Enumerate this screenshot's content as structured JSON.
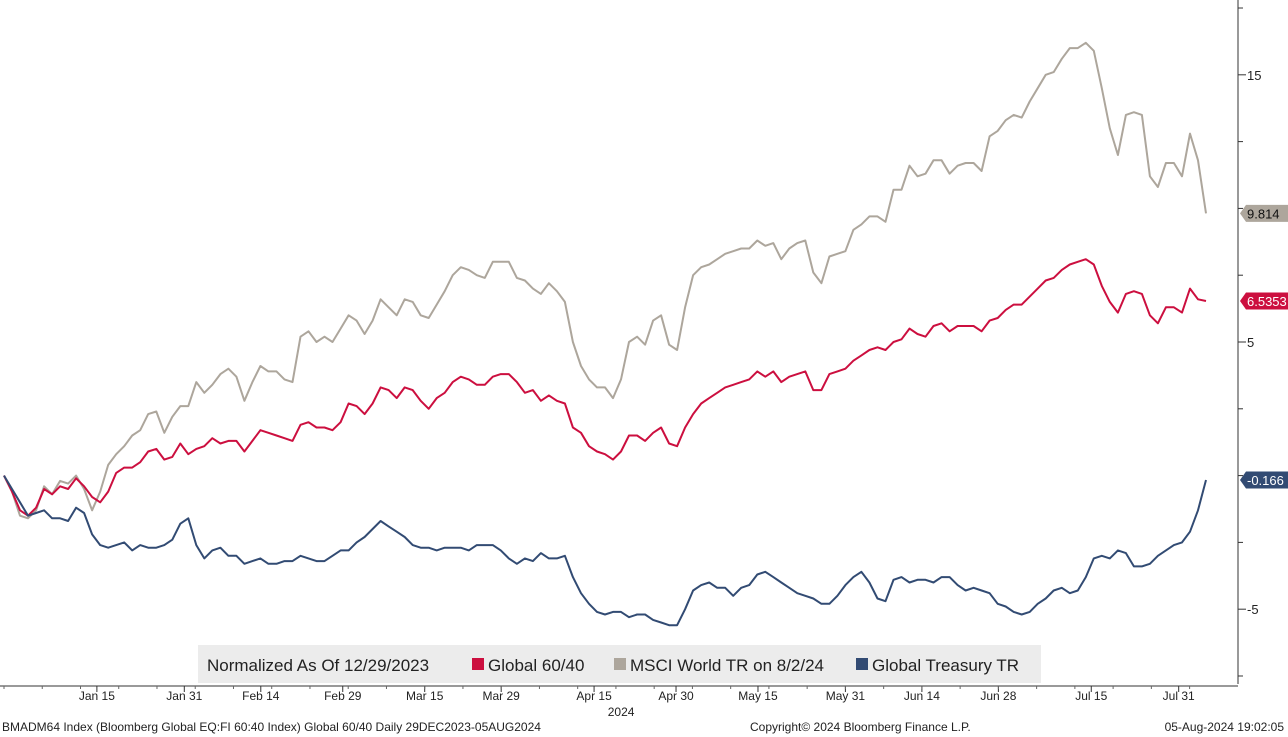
{
  "chart_data": {
    "type": "line",
    "legend": {
      "placement": "bottom",
      "label": "Normalized As Of 12/29/2023",
      "entries": [
        "Global 60/40",
        "MSCI World TR on 8/2/24",
        "Global Treasury TR"
      ]
    },
    "y_axis": {
      "position": "right",
      "ticks": [
        15,
        5,
        -5
      ],
      "range": [
        -7.8,
        17.8
      ]
    },
    "x_axis": {
      "ticks": [
        "Jan 15",
        "Jan 31",
        "Feb 14",
        "Feb 29",
        "Mar 15",
        "Mar 29",
        "Apr 15",
        "Apr 30",
        "May 15",
        "May 31",
        "Jun 14",
        "Jun 28",
        "Jul 15",
        "Jul 31"
      ],
      "year_label": "2024",
      "start": "2023-12-29",
      "end": "2024-08-05"
    },
    "grid": false,
    "series": [
      {
        "name": "MSCI World TR on 8/2/24",
        "color": "#ada69c",
        "last_value_label": "9.814",
        "values": [
          0.0,
          -0.6,
          -1.5,
          -1.6,
          -1.3,
          -0.4,
          -0.7,
          -0.2,
          -0.3,
          0.0,
          -0.5,
          -1.3,
          -0.6,
          0.4,
          0.8,
          1.1,
          1.5,
          1.7,
          2.3,
          2.4,
          1.6,
          2.2,
          2.6,
          2.6,
          3.5,
          3.1,
          3.4,
          3.8,
          4.0,
          3.7,
          2.8,
          3.5,
          4.1,
          3.9,
          3.9,
          3.6,
          3.5,
          5.2,
          5.4,
          5.0,
          5.2,
          5.0,
          5.5,
          6.0,
          5.8,
          5.3,
          5.8,
          6.6,
          6.3,
          6.0,
          6.6,
          6.5,
          6.0,
          5.9,
          6.4,
          6.9,
          7.5,
          7.8,
          7.7,
          7.5,
          7.4,
          8.0,
          8.0,
          8.0,
          7.4,
          7.3,
          7.0,
          6.8,
          7.2,
          6.9,
          6.5,
          5.0,
          4.1,
          3.6,
          3.3,
          3.3,
          2.9,
          3.6,
          5.0,
          5.2,
          4.9,
          5.8,
          6.0,
          4.9,
          4.7,
          6.3,
          7.5,
          7.8,
          7.9,
          8.1,
          8.3,
          8.4,
          8.5,
          8.5,
          8.8,
          8.6,
          8.7,
          8.1,
          8.5,
          8.7,
          8.8,
          7.6,
          7.2,
          8.2,
          8.3,
          8.4,
          9.2,
          9.4,
          9.7,
          9.7,
          9.5,
          10.7,
          10.7,
          11.6,
          11.2,
          11.3,
          11.8,
          11.8,
          11.3,
          11.6,
          11.7,
          11.7,
          11.4,
          12.7,
          12.9,
          13.3,
          13.5,
          13.4,
          14.0,
          14.5,
          15.0,
          15.1,
          15.6,
          16.0,
          16.0,
          16.2,
          15.9,
          14.5,
          13.0,
          12.0,
          13.5,
          13.6,
          13.5,
          11.2,
          10.8,
          11.7,
          11.7,
          11.2,
          12.8,
          11.8,
          9.814
        ]
      },
      {
        "name": "Global 60/40",
        "color": "#cc0f3f",
        "last_value_label": "6.5353",
        "values": [
          0.0,
          -0.6,
          -1.3,
          -1.5,
          -1.2,
          -0.5,
          -0.7,
          -0.4,
          -0.5,
          -0.1,
          -0.4,
          -0.8,
          -1.0,
          -0.6,
          0.1,
          0.3,
          0.3,
          0.5,
          0.9,
          1.0,
          0.6,
          0.7,
          1.2,
          0.8,
          1.0,
          1.1,
          1.4,
          1.2,
          1.3,
          1.3,
          0.9,
          1.3,
          1.7,
          1.6,
          1.5,
          1.4,
          1.3,
          1.9,
          2.0,
          1.8,
          1.8,
          1.7,
          2.0,
          2.7,
          2.6,
          2.3,
          2.7,
          3.3,
          3.2,
          2.9,
          3.3,
          3.2,
          2.8,
          2.5,
          2.9,
          3.1,
          3.5,
          3.7,
          3.6,
          3.4,
          3.4,
          3.7,
          3.8,
          3.8,
          3.5,
          3.1,
          3.2,
          2.8,
          3.0,
          2.8,
          2.7,
          1.8,
          1.6,
          1.1,
          0.9,
          0.8,
          0.6,
          0.9,
          1.5,
          1.5,
          1.3,
          1.6,
          1.8,
          1.2,
          1.1,
          1.8,
          2.3,
          2.7,
          2.9,
          3.1,
          3.3,
          3.4,
          3.5,
          3.6,
          3.9,
          3.7,
          3.9,
          3.5,
          3.7,
          3.8,
          3.9,
          3.2,
          3.2,
          3.8,
          3.9,
          4.0,
          4.3,
          4.5,
          4.7,
          4.8,
          4.7,
          5.0,
          5.1,
          5.5,
          5.3,
          5.2,
          5.6,
          5.7,
          5.4,
          5.6,
          5.6,
          5.6,
          5.4,
          5.8,
          5.9,
          6.2,
          6.4,
          6.4,
          6.7,
          7.0,
          7.3,
          7.4,
          7.7,
          7.9,
          8.0,
          8.1,
          7.9,
          7.1,
          6.5,
          6.1,
          6.8,
          6.9,
          6.8,
          6.0,
          5.7,
          6.3,
          6.3,
          6.1,
          7.0,
          6.6,
          6.5353
        ]
      },
      {
        "name": "Global Treasury TR",
        "color": "#324b73",
        "last_value_label": "-0.166",
        "values": [
          0.0,
          -0.5,
          -1.0,
          -1.5,
          -1.4,
          -1.3,
          -1.6,
          -1.6,
          -1.7,
          -1.2,
          -1.4,
          -2.2,
          -2.6,
          -2.7,
          -2.6,
          -2.5,
          -2.8,
          -2.6,
          -2.7,
          -2.7,
          -2.6,
          -2.4,
          -1.8,
          -1.6,
          -2.6,
          -3.1,
          -2.8,
          -2.7,
          -3.0,
          -3.0,
          -3.3,
          -3.2,
          -3.1,
          -3.3,
          -3.3,
          -3.2,
          -3.2,
          -3.0,
          -3.1,
          -3.2,
          -3.2,
          -3.0,
          -2.8,
          -2.8,
          -2.5,
          -2.3,
          -2.0,
          -1.7,
          -1.9,
          -2.1,
          -2.3,
          -2.6,
          -2.7,
          -2.7,
          -2.8,
          -2.7,
          -2.7,
          -2.7,
          -2.8,
          -2.6,
          -2.6,
          -2.6,
          -2.8,
          -3.1,
          -3.3,
          -3.1,
          -3.2,
          -2.9,
          -3.1,
          -3.1,
          -3.0,
          -3.8,
          -4.4,
          -4.8,
          -5.1,
          -5.2,
          -5.1,
          -5.1,
          -5.3,
          -5.2,
          -5.2,
          -5.4,
          -5.5,
          -5.6,
          -5.6,
          -5.0,
          -4.3,
          -4.1,
          -4.0,
          -4.2,
          -4.2,
          -4.5,
          -4.2,
          -4.1,
          -3.7,
          -3.6,
          -3.8,
          -4.0,
          -4.2,
          -4.4,
          -4.5,
          -4.6,
          -4.8,
          -4.8,
          -4.5,
          -4.1,
          -3.8,
          -3.6,
          -4.0,
          -4.6,
          -4.7,
          -3.9,
          -3.8,
          -4.0,
          -3.9,
          -3.9,
          -4.0,
          -3.8,
          -3.8,
          -4.1,
          -4.3,
          -4.2,
          -4.3,
          -4.4,
          -4.8,
          -4.9,
          -5.1,
          -5.2,
          -5.1,
          -4.8,
          -4.6,
          -4.3,
          -4.2,
          -4.4,
          -4.3,
          -3.8,
          -3.1,
          -3.0,
          -3.1,
          -2.8,
          -2.9,
          -3.4,
          -3.4,
          -3.3,
          -3.0,
          -2.8,
          -2.6,
          -2.5,
          -2.1,
          -1.3,
          -0.166
        ]
      }
    ]
  },
  "footer": {
    "left": "BMADM64 Index (Bloomberg Global EQ:FI 60:40 Index) Global 60/40  Daily 29DEC2023-05AUG2024",
    "middle": "Copyright© 2024 Bloomberg Finance L.P.",
    "right": "05-Aug-2024 19:02:05"
  }
}
